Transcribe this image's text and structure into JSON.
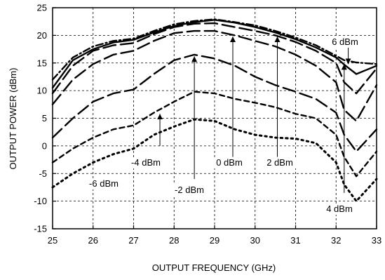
{
  "chart_data": {
    "type": "line",
    "title": "",
    "xlabel": "OUTPUT FREQUENCY (GHz)",
    "ylabel": "OUTPUT POWER (dBm)",
    "xlim": [
      25,
      33
    ],
    "ylim": [
      -15,
      25
    ],
    "xticks": [
      25,
      26,
      27,
      28,
      29,
      30,
      31,
      32,
      33
    ],
    "yticks": [
      -15,
      -10,
      -5,
      0,
      5,
      10,
      15,
      20,
      25
    ],
    "grid": true,
    "grid_style": "dashed",
    "line_color": "#000000",
    "series": [
      {
        "name": "-6 dBm",
        "dash": "dotted",
        "x": [
          25,
          25.5,
          26,
          26.5,
          27,
          27.5,
          28,
          28.5,
          29,
          29.5,
          30,
          30.5,
          31,
          31.5,
          32,
          32.2,
          32.5,
          33
        ],
        "y": [
          -7.5,
          -5,
          -3,
          -1.5,
          -0.5,
          2,
          3.5,
          4.8,
          4.5,
          3,
          2,
          1.5,
          1.3,
          0.5,
          -3,
          -7,
          -10,
          -6
        ]
      },
      {
        "name": "-4 dBm",
        "dash": "short-dash",
        "x": [
          25,
          25.5,
          26,
          26.5,
          27,
          27.5,
          28,
          28.5,
          29,
          29.5,
          30,
          30.5,
          31,
          31.5,
          32,
          32.2,
          32.5,
          33
        ],
        "y": [
          -3,
          -0.5,
          1.5,
          3,
          3.7,
          6,
          8,
          9.8,
          9.5,
          8.5,
          7.8,
          7,
          5.8,
          5,
          2,
          -2,
          -5.5,
          -1
        ]
      },
      {
        "name": "-2 dBm",
        "dash": "long-dash",
        "x": [
          25,
          25.5,
          26,
          26.5,
          27,
          27.5,
          28,
          28.5,
          29,
          29.5,
          30,
          30.5,
          31,
          31.5,
          32,
          32.2,
          32.5,
          33
        ],
        "y": [
          1.5,
          5,
          8,
          9.5,
          10.2,
          13,
          15.5,
          16.5,
          15.8,
          14.5,
          12.5,
          11,
          9.8,
          8.5,
          6,
          2,
          -1,
          3
        ]
      },
      {
        "name": "0 dBm",
        "dash": "long-dash",
        "x": [
          25,
          25.5,
          26,
          26.5,
          27,
          27.5,
          28,
          28.5,
          29,
          29.5,
          30,
          30.5,
          31,
          31.5,
          32,
          32.2,
          32.5,
          33
        ],
        "y": [
          7.5,
          12,
          14.8,
          16.5,
          17.2,
          19,
          20.4,
          20.8,
          20.8,
          20,
          19,
          18,
          16.5,
          14.5,
          11.5,
          6.5,
          4.5,
          11
        ]
      },
      {
        "name": "2 dBm",
        "dash": "long-dash",
        "x": [
          25,
          25.5,
          26,
          26.5,
          27,
          27.5,
          28,
          28.5,
          29,
          29.5,
          30,
          30.5,
          31,
          31.5,
          32,
          32.2,
          32.5,
          33
        ],
        "y": [
          9.5,
          14.5,
          17.2,
          18.2,
          18.6,
          20.2,
          21.5,
          22.1,
          22.2,
          21.5,
          20.8,
          20,
          18.8,
          17.2,
          15,
          11.5,
          9.5,
          14
        ]
      },
      {
        "name": "4 dBm",
        "dash": "solid",
        "x": [
          25,
          25.5,
          26,
          26.5,
          27,
          27.5,
          28,
          28.5,
          29,
          29.5,
          30,
          30.5,
          31,
          31.5,
          32,
          32.2,
          32.5,
          33
        ],
        "y": [
          10.5,
          15.5,
          17.5,
          18.7,
          19.2,
          20.5,
          21.7,
          22.4,
          22.8,
          22.3,
          21.5,
          20.5,
          19.3,
          17.8,
          16,
          14.7,
          13,
          14.5
        ]
      },
      {
        "name": "6 dBm",
        "dash": "dash-dot",
        "x": [
          25,
          25.5,
          26,
          26.5,
          27,
          27.5,
          28,
          28.5,
          29,
          29.5,
          30,
          30.5,
          31,
          31.5,
          32,
          32.2,
          32.5,
          33
        ],
        "y": [
          12,
          16,
          18,
          19,
          19.4,
          20.8,
          22,
          22.6,
          22.9,
          22.4,
          21.8,
          20.8,
          19.6,
          18.2,
          16.3,
          15.5,
          15.1,
          14.8
        ]
      }
    ],
    "annotations": [
      {
        "text": "6 dBm",
        "arrow_from": [
          32.3,
          18.3
        ],
        "arrow_to": [
          32.3,
          14.8
        ]
      },
      {
        "text": "4 dBm",
        "arrow_from": [
          32.2,
          -8.5
        ],
        "arrow_to": [
          32.2,
          14.8
        ]
      },
      {
        "text": "2 dBm",
        "arrow_from": [
          30.55,
          -2
        ],
        "arrow_to": [
          30.55,
          19.8
        ]
      },
      {
        "text": "0 dBm",
        "arrow_from": [
          29.45,
          -2
        ],
        "arrow_to": [
          29.45,
          19.8
        ]
      },
      {
        "text": "-2 dBm",
        "arrow_from": [
          28.5,
          -6
        ],
        "arrow_to": [
          28.5,
          16.2
        ]
      },
      {
        "text": "-4 dBm",
        "arrow_from": [
          27.65,
          0
        ],
        "arrow_to": [
          27.65,
          5.8
        ]
      },
      {
        "text": "-6 dBm",
        "arrow_from": null,
        "arrow_to": null
      }
    ]
  }
}
